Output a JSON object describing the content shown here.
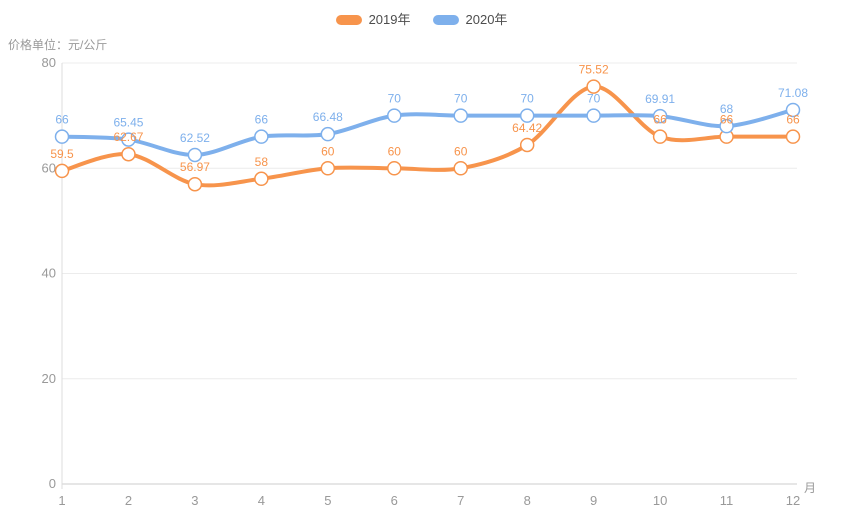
{
  "unit_label": "价格单位：元/公斤",
  "legend": {
    "items": [
      {
        "label": "2019年",
        "color": "#F7944C"
      },
      {
        "label": "2020年",
        "color": "#7EB0EC"
      }
    ]
  },
  "chart_data": {
    "type": "line",
    "title": "",
    "x": [
      1,
      2,
      3,
      4,
      5,
      6,
      7,
      8,
      9,
      10,
      11,
      12
    ],
    "xlabel": "月",
    "ylabel": "价格单位：元/公斤",
    "ylim": [
      0,
      80
    ],
    "yticks": [
      0,
      20,
      40,
      60,
      80
    ],
    "grid": true,
    "smooth": true,
    "legend_position": "top-center",
    "series": [
      {
        "name": "2019年",
        "color": "#F7944C",
        "values": [
          59.5,
          62.67,
          56.97,
          58,
          60,
          60,
          60,
          64.42,
          75.52,
          66,
          66,
          66
        ]
      },
      {
        "name": "2020年",
        "color": "#7EB0EC",
        "values": [
          66,
          65.45,
          62.52,
          66,
          66.48,
          70,
          70,
          70,
          70,
          69.91,
          68,
          71.08
        ]
      }
    ]
  },
  "axis_style": {
    "tick_label_color": "#999999",
    "axis_line_color": "#cccccc",
    "grid_line_color": "#ececec"
  }
}
